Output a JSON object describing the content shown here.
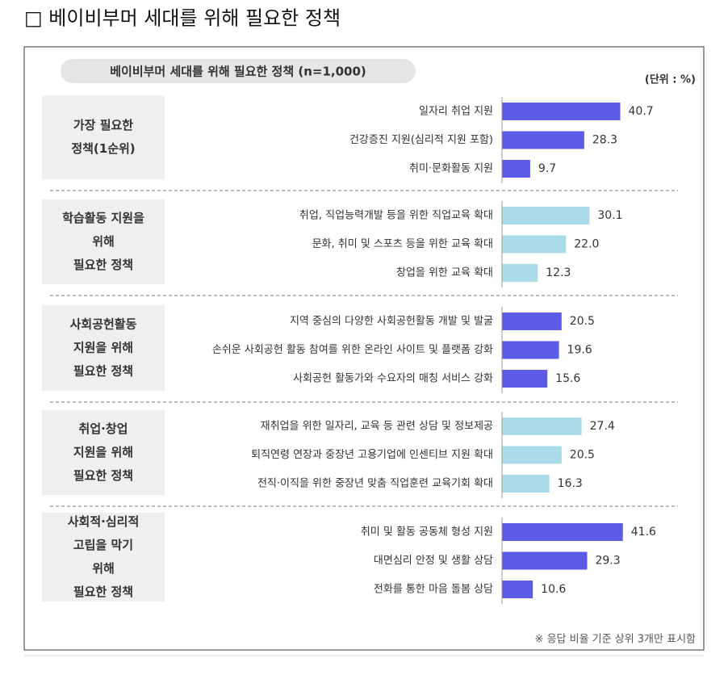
{
  "chart_data": {
    "type": "bar",
    "orientation": "horizontal",
    "heading": "□ 베이비부머 세대를 위해 필요한 정책",
    "title": "베이비부머 세대를 위해 필요한 정책 (n=1,000)",
    "unit": "(단위 : %)",
    "footnote": "※ 응답 비율 기준 상위 3개만 표시함",
    "groups": [
      {
        "label": [
          "가장 필요한",
          "정책(1순위)"
        ],
        "color": "#5b5be6",
        "categories": [
          "일자리 취업 지원",
          "건강증진 지원(심리적 지원 포함)",
          "취미·문화활동 지원"
        ],
        "values": [
          40.7,
          28.3,
          9.7
        ],
        "value_labels": [
          "40.7",
          "28.3",
          "9.7"
        ]
      },
      {
        "label": [
          "학습활동 지원을",
          "위해",
          "필요한 정책"
        ],
        "color": "#a9dce8",
        "categories": [
          "취업, 직업능력개발 등을 위한 직업교육 확대",
          "문화, 취미 및 스포츠 등을 위한 교육 확대",
          "창업을 위한 교육 확대"
        ],
        "values": [
          30.1,
          22.0,
          12.3
        ],
        "value_labels": [
          "30.1",
          "22.0",
          "12.3"
        ]
      },
      {
        "label": [
          "사회공헌활동",
          "지원을 위해",
          "필요한 정책"
        ],
        "color": "#5b5be6",
        "categories": [
          "지역 중심의 다양한 사회공헌활동 개발 및 발굴",
          "손쉬운 사회공헌 활동 참여를 위한 온라인 사이트 및 플랫폼 강화",
          "사회공헌 활동가와 수요자의 매칭 서비스 강화"
        ],
        "values": [
          20.5,
          19.6,
          15.6
        ],
        "value_labels": [
          "20.5",
          "19.6",
          "15.6"
        ]
      },
      {
        "label": [
          "취업·창업",
          "지원을 위해",
          "필요한 정책"
        ],
        "color": "#a9dce8",
        "categories": [
          "재취업을 위한 일자리, 교육 등 관련 상담 및 정보제공",
          "퇴직연령 연장과 중장년 고용기업에 인센티브 지원 확대",
          "전직·이직을 위한 중장년 맞춤 직업훈련 교육기회 확대"
        ],
        "values": [
          27.4,
          20.5,
          16.3
        ],
        "value_labels": [
          "27.4",
          "20.5",
          "16.3"
        ]
      },
      {
        "label": [
          "사회적·심리적",
          "고립을 막기",
          "위해",
          "필요한 정책"
        ],
        "color": "#5b5be6",
        "categories": [
          "취미 및 활동 공동체 형성 지원",
          "대면심리 안정 및 생활 상담",
          "전화를 통한 마음 돌봄 상담"
        ],
        "values": [
          41.6,
          29.3,
          10.6
        ],
        "value_labels": [
          "41.6",
          "29.3",
          "10.6"
        ]
      }
    ]
  }
}
